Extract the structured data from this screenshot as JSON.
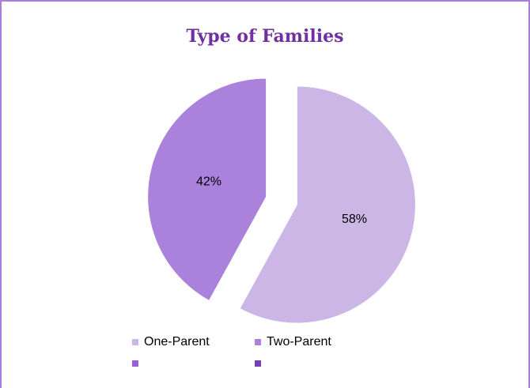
{
  "chart_data": {
    "type": "pie",
    "title": "Type of Families",
    "categories": [
      "One-Parent",
      "Two-Parent",
      null,
      null
    ],
    "values": [
      58,
      42,
      0,
      0
    ],
    "value_labels": [
      "58%",
      "42%",
      null,
      null
    ],
    "colors": [
      "#cbb6e6",
      "#ab82db",
      "#9a5fd2",
      "#7a3fb0"
    ],
    "exploded": true
  }
}
